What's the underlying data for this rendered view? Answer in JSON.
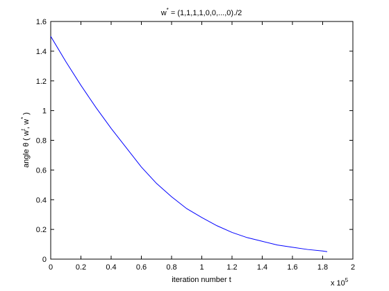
{
  "chart_data": {
    "type": "line",
    "title": {
      "base": "w",
      "sup": "*",
      "rest": " = (1,1,1,1,0,0,...,0)./2"
    },
    "x_label": "iteration number t",
    "y_label": {
      "part1": "angle θ ( w",
      "sup1": "t",
      "part2": ", w",
      "sup2": "*",
      "part3": " )"
    },
    "x_multiplier": {
      "base": "x 10",
      "sup": "5"
    },
    "x": [
      0,
      0.1,
      0.2,
      0.3,
      0.4,
      0.5,
      0.6,
      0.7,
      0.8,
      0.9,
      1.0,
      1.1,
      1.2,
      1.3,
      1.4,
      1.5,
      1.6,
      1.7,
      1.8,
      1.83
    ],
    "series": [
      {
        "color": "#0000ff",
        "values": [
          1.5,
          1.33,
          1.17,
          1.02,
          0.88,
          0.75,
          0.62,
          0.51,
          0.42,
          0.34,
          0.28,
          0.225,
          0.18,
          0.145,
          0.12,
          0.095,
          0.08,
          0.065,
          0.055,
          0.05
        ]
      }
    ],
    "xlim": [
      0,
      2
    ],
    "xticks": [
      0,
      0.2,
      0.4,
      0.6,
      0.8,
      1,
      1.2,
      1.4,
      1.6,
      1.8,
      2
    ],
    "ylim": [
      0,
      1.6
    ],
    "yticks": [
      0,
      0.2,
      0.4,
      0.6,
      0.8,
      1,
      1.2,
      1.4,
      1.6
    ],
    "grid": false
  }
}
